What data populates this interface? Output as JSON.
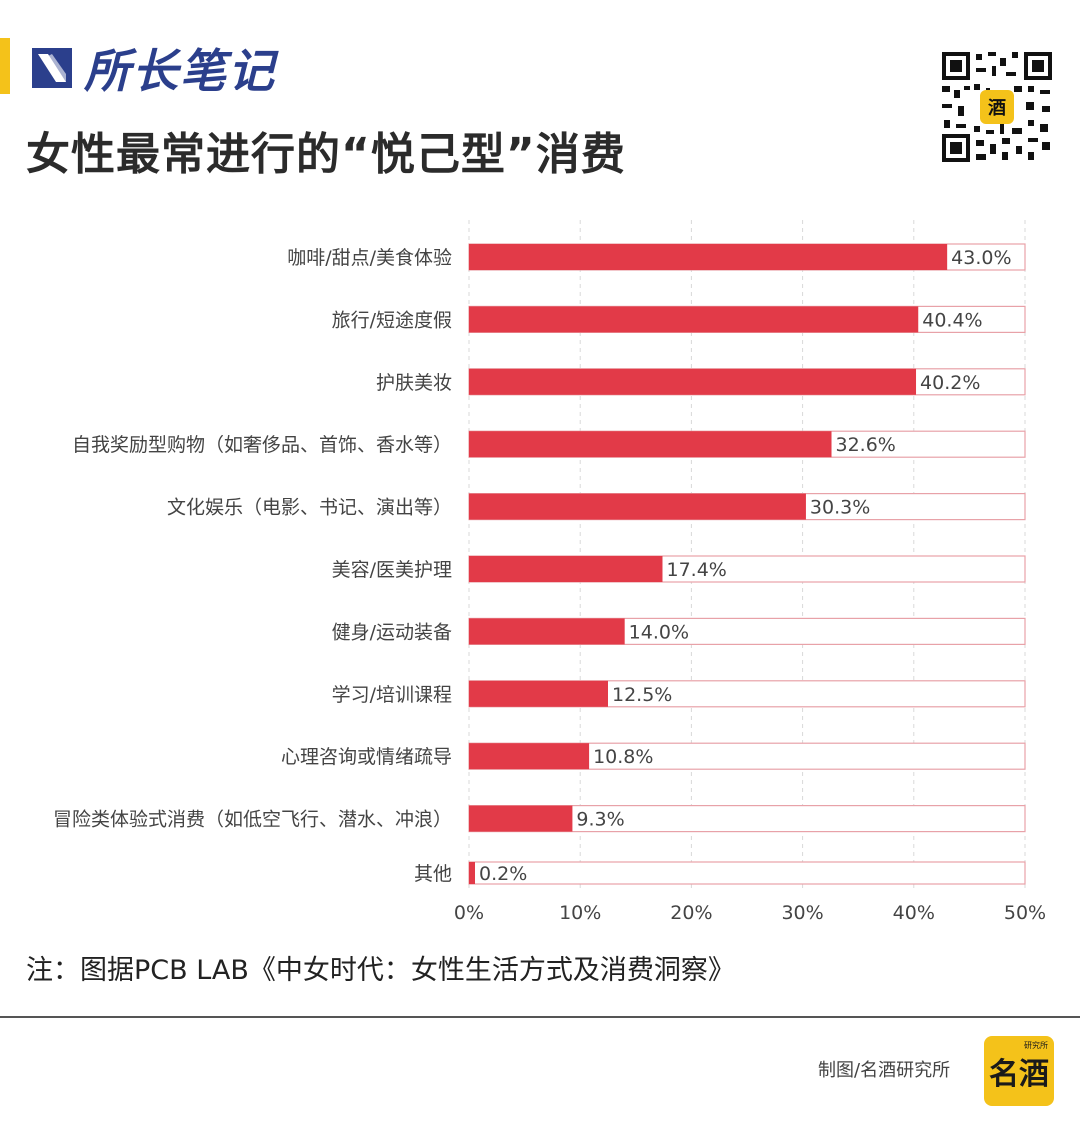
{
  "header": {
    "brand_text": "所长笔记",
    "title": "女性最常进行的“悦己型”消费"
  },
  "chart_data": {
    "type": "bar",
    "orientation": "horizontal",
    "categories": [
      "咖啡/甜点/美食体验",
      "旅行/短途度假",
      "护肤美妆",
      "自我奖励型购物（如奢侈品、首饰、香水等）",
      "文化娱乐（电影、书记、演出等）",
      "美容/医美护理",
      "健身/运动装备",
      "学习/培训课程",
      "心理咨询或情绪疏导",
      "冒险类体验式消费（如低空飞行、潜水、冲浪）",
      "其他"
    ],
    "values": [
      43.0,
      40.4,
      40.2,
      32.6,
      30.3,
      17.4,
      14.0,
      12.5,
      10.8,
      9.3,
      0.2
    ],
    "value_labels": [
      "43.0%",
      "40.4%",
      "40.2%",
      "32.6%",
      "30.3%",
      "17.4%",
      "14.0%",
      "12.5%",
      "10.8%",
      "9.3%",
      "0.2%"
    ],
    "xlim": [
      0,
      50
    ],
    "xticks": [
      "0%",
      "10%",
      "20%",
      "30%",
      "40%",
      "50%"
    ],
    "grid": "vertical-dashed",
    "bar_color": "#e23a48",
    "track_color": "#e8a2a8"
  },
  "footer": {
    "note": "注：图据PCB LAB《中女时代：女性生活方式及消费洞察》",
    "credit": "制图/名酒研究所",
    "logo_text": "名酒",
    "logo_small": "研究所"
  },
  "colors": {
    "brand_blue": "#2b3f8c",
    "accent_yellow": "#f4c21a"
  },
  "icons": [
    "brand-logo-icon",
    "qr-code-icon",
    "mingjiu-logo-icon"
  ]
}
